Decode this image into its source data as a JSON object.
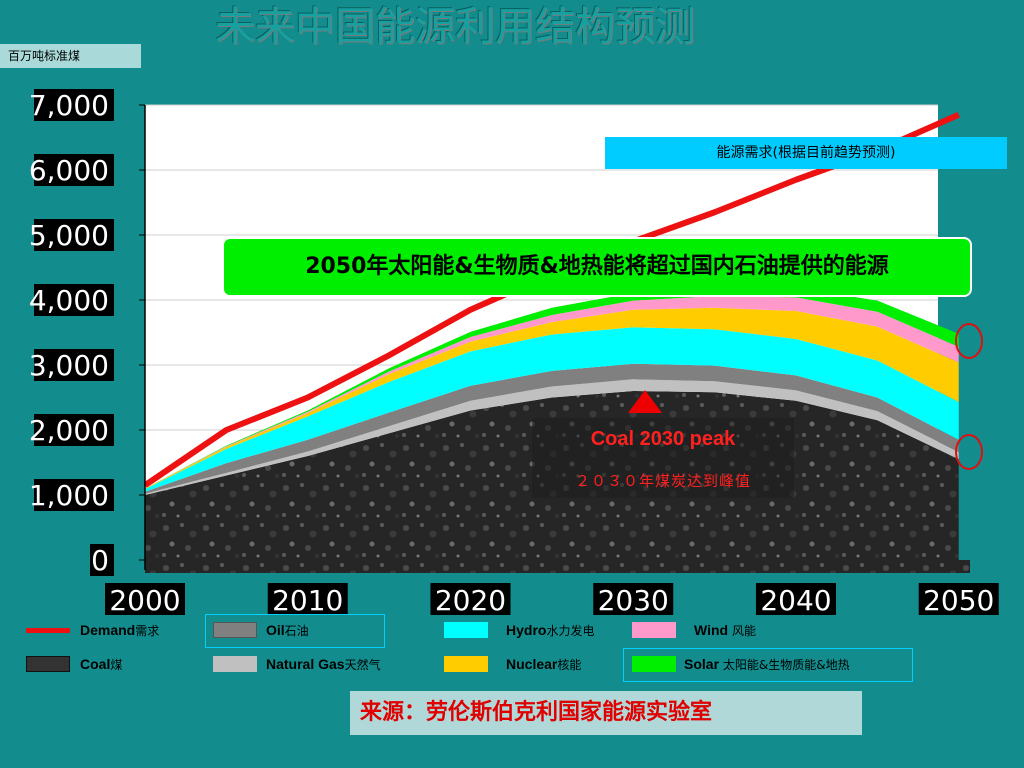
{
  "title": "未来中国能源利用结构预测",
  "unit_label": "百万吨标准煤",
  "callouts": {
    "demand": "能源需求(根据目前趋势预测)",
    "solar": "2050年太阳能&生物质&地热能将超过国内石油提供的能源",
    "coal_peak_en": "Coal 2030 peak",
    "coal_peak_cn": "２０３０年煤炭达到峰值"
  },
  "legend": [
    {
      "en": "Demand",
      "cn": "需求",
      "color": "#EE1111",
      "kind": "line"
    },
    {
      "en": "Oil",
      "cn": "石油",
      "color": "#808080",
      "kind": "box"
    },
    {
      "en": "Hydro",
      "cn": "水力发电",
      "color": "#00FFFF",
      "kind": "box"
    },
    {
      "en": "Wind ",
      "cn": "风能",
      "color": "#FF99CC",
      "kind": "box"
    },
    {
      "en": "Coal",
      "cn": "煤",
      "color": "#333333",
      "kind": "box"
    },
    {
      "en": "Natural Gas",
      "cn": "天然气",
      "color": "#C0C0C0",
      "kind": "box"
    },
    {
      "en": "Nuclear",
      "cn": "核能",
      "color": "#FFCC00",
      "kind": "box"
    },
    {
      "en": "Solar ",
      "cn": "太阳能&生物质能&地热",
      "color": "#00EE00",
      "kind": "box"
    }
  ],
  "source": "来源：劳伦斯伯克利国家能源实验室",
  "chart_data": {
    "type": "area",
    "x": [
      2000,
      2005,
      2010,
      2015,
      2020,
      2025,
      2030,
      2035,
      2040,
      2045,
      2050
    ],
    "xticks": [
      "2000",
      "2010",
      "2020",
      "2030",
      "2040",
      "2050"
    ],
    "yticks": [
      "0",
      "1,000",
      "2,000",
      "3,000",
      "4,000",
      "5,000",
      "6,000",
      "7,000"
    ],
    "xlim": [
      2000,
      2051
    ],
    "ylim": [
      0,
      7000
    ],
    "stack_order": [
      "Coal",
      "Natural Gas",
      "Oil",
      "Hydro",
      "Nuclear",
      "Wind",
      "Solar"
    ],
    "series": [
      {
        "name": "Coal",
        "color": "#2E2E2E",
        "values": [
          1000,
          1300,
          1600,
          1950,
          2300,
          2500,
          2600,
          2580,
          2450,
          2150,
          1550
        ]
      },
      {
        "name": "Natural Gas",
        "color": "#C0C0C0",
        "values": [
          20,
          40,
          70,
          110,
          150,
          170,
          180,
          170,
          160,
          140,
          110
        ]
      },
      {
        "name": "Oil",
        "color": "#808080",
        "values": [
          30,
          150,
          180,
          210,
          230,
          240,
          240,
          240,
          230,
          210,
          190
        ]
      },
      {
        "name": "Hydro",
        "color": "#00FFFF",
        "values": [
          40,
          220,
          360,
          470,
          530,
          560,
          560,
          560,
          560,
          570,
          580
        ]
      },
      {
        "name": "Nuclear",
        "color": "#FFCC00",
        "values": [
          10,
          30,
          50,
          120,
          150,
          190,
          270,
          330,
          430,
          520,
          610
        ]
      },
      {
        "name": "Wind",
        "color": "#FF99CC",
        "values": [
          0,
          10,
          20,
          40,
          70,
          110,
          140,
          180,
          210,
          230,
          240
        ]
      },
      {
        "name": "Solar",
        "color": "#00EE00",
        "values": [
          0,
          10,
          20,
          50,
          80,
          110,
          120,
          140,
          150,
          170,
          200
        ]
      },
      {
        "name": "Demand",
        "color": "#EE1111",
        "kind": "line",
        "values": [
          1150,
          2000,
          2500,
          3150,
          3850,
          4400,
          4900,
          5350,
          5850,
          6300,
          6850
        ]
      }
    ]
  }
}
